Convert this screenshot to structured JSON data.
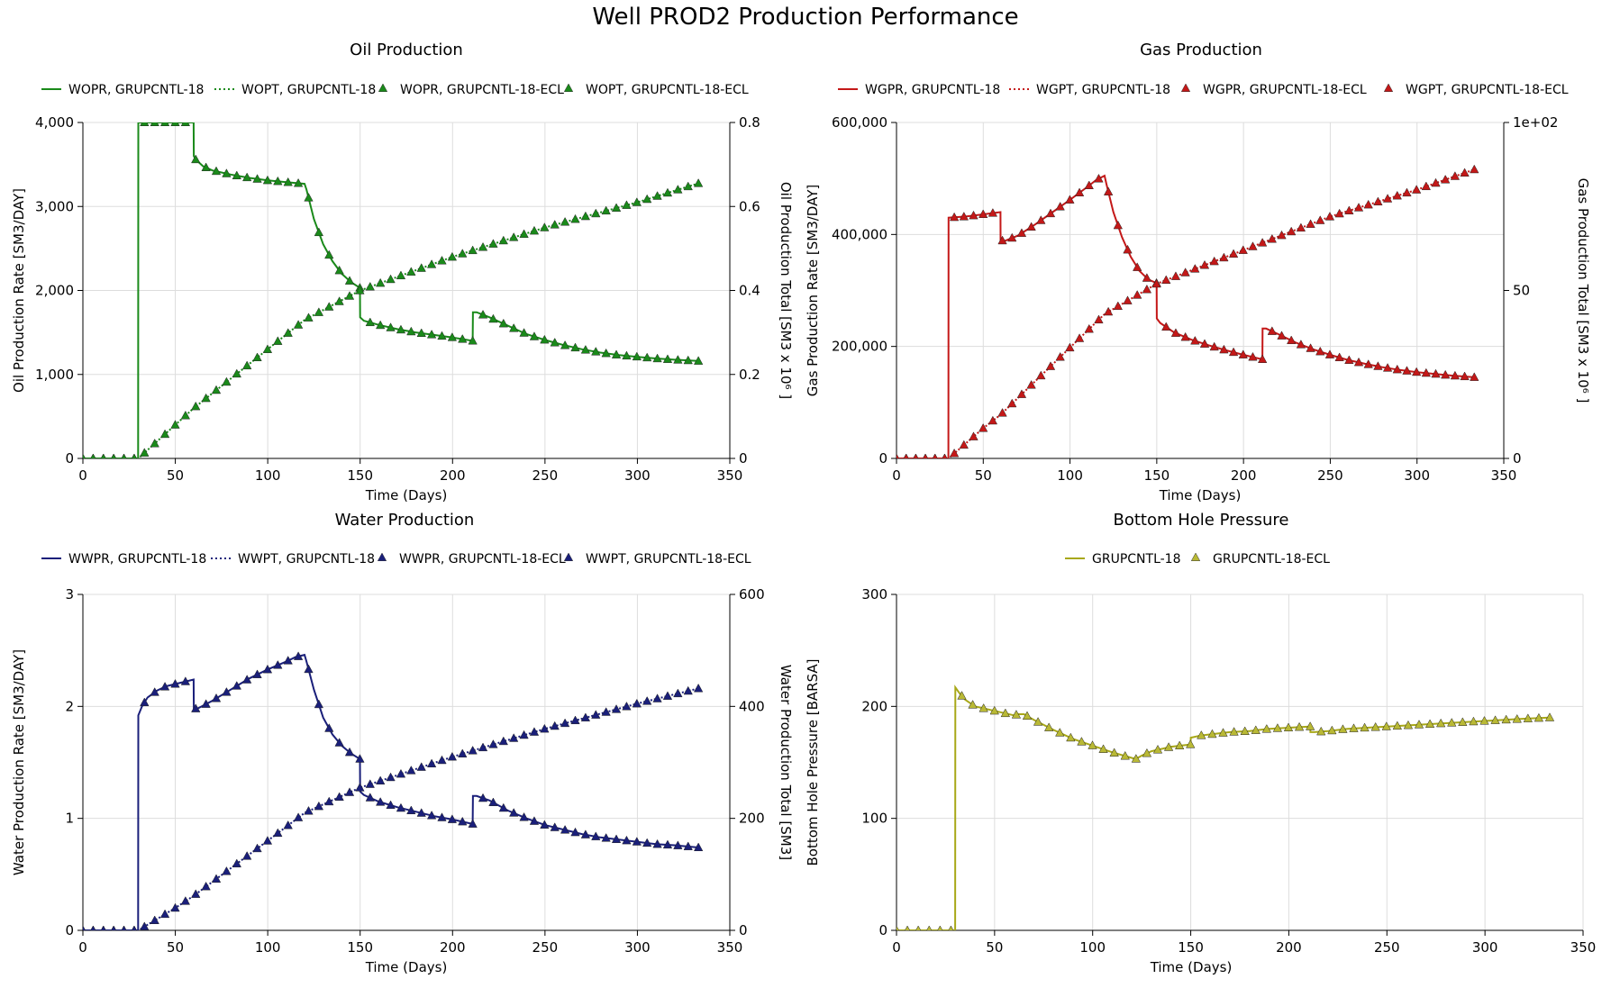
{
  "page": {
    "title": "Well PROD2 Production Performance"
  },
  "colors": {
    "oil": "#1a8a1a",
    "gas": "#c41818",
    "water": "#1a1f7a",
    "bhp": "#a8a818",
    "bhp_marker": "#b9b935",
    "grid": "#dddddd",
    "axis": "#000000"
  },
  "chart_data": [
    {
      "id": "oil",
      "type": "line",
      "title": "Oil Production",
      "xlabel": "Time (Days)",
      "ylabel": "Oil Production Rate [SM3/DAY]",
      "y2label": "Oil Production Total [SM3 x 10⁶ ]",
      "xlim": [
        0,
        350
      ],
      "xticks": [
        0,
        50,
        100,
        150,
        200,
        250,
        300,
        350
      ],
      "xtick_labels": [
        "0",
        "50",
        "100",
        "150",
        "200",
        "250",
        "300",
        "350"
      ],
      "ylim": [
        0,
        4000
      ],
      "yticks": [
        0,
        1000,
        2000,
        3000,
        4000
      ],
      "ytick_labels": [
        "0",
        "1,000",
        "2,000",
        "3,000",
        "4,000"
      ],
      "y2lim": [
        0,
        0.8
      ],
      "y2ticks": [
        0,
        0.2,
        0.4,
        0.6,
        0.8
      ],
      "y2tick_labels": [
        "0",
        "0.2",
        "0.4",
        "0.6",
        "0.8"
      ],
      "grid": true,
      "legend": [
        {
          "label": "WOPR, GRUPCNTL-18",
          "kind": "line"
        },
        {
          "label": "WOPT, GRUPCNTL-18",
          "kind": "dotted"
        },
        {
          "label": "WOPR, GRUPCNTL-18-ECL",
          "kind": "marker"
        },
        {
          "label": "WOPT, GRUPCNTL-18-ECL",
          "kind": "marker"
        }
      ],
      "series": [
        {
          "axis": "y1",
          "x": [
            0,
            29.9,
            30,
            59.9,
            60,
            61,
            65,
            70,
            80,
            90,
            100,
            110,
            119.9,
            121,
            125,
            130,
            135,
            140,
            145,
            149.9,
            150,
            152,
            160,
            170,
            180,
            190,
            200,
            210.9,
            211,
            213,
            220,
            230,
            240,
            250,
            260,
            270,
            280,
            290,
            300,
            310,
            320,
            333
          ],
          "y": [
            0,
            0,
            4000,
            4000,
            3600,
            3560,
            3480,
            3430,
            3380,
            3340,
            3310,
            3290,
            3270,
            3200,
            2850,
            2550,
            2350,
            2200,
            2100,
            2030,
            1680,
            1640,
            1590,
            1540,
            1500,
            1470,
            1440,
            1400,
            1740,
            1740,
            1680,
            1580,
            1480,
            1410,
            1350,
            1300,
            1260,
            1230,
            1210,
            1190,
            1175,
            1160
          ]
        },
        {
          "axis": "y2",
          "x": [
            0,
            30,
            50,
            60,
            100,
            120,
            150,
            200,
            250,
            300,
            333
          ],
          "y": [
            0,
            0,
            0.08,
            0.12,
            0.26,
            0.33,
            0.4,
            0.48,
            0.55,
            0.61,
            0.655
          ]
        }
      ]
    },
    {
      "id": "gas",
      "type": "line",
      "title": "Gas Production",
      "xlabel": "Time (Days)",
      "ylabel": "Gas Production Rate [SM3/DAY]",
      "y2label": "Gas Production Total [SM3 x 10⁶ ]",
      "xlim": [
        0,
        350
      ],
      "xticks": [
        0,
        50,
        100,
        150,
        200,
        250,
        300,
        350
      ],
      "xtick_labels": [
        "0",
        "50",
        "100",
        "150",
        "200",
        "250",
        "300",
        "350"
      ],
      "ylim": [
        0,
        600000
      ],
      "yticks": [
        0,
        200000,
        400000,
        600000
      ],
      "ytick_labels": [
        "0",
        "200,000",
        "400,000",
        "600,000"
      ],
      "y2lim": [
        0,
        100
      ],
      "y2ticks": [
        0,
        50,
        100
      ],
      "y2tick_labels": [
        "0",
        "50",
        "1e+02"
      ],
      "grid": true,
      "legend": [
        {
          "label": "WGPR, GRUPCNTL-18",
          "kind": "line"
        },
        {
          "label": "WGPT, GRUPCNTL-18",
          "kind": "dotted"
        },
        {
          "label": "WGPR, GRUPCNTL-18-ECL",
          "kind": "marker"
        },
        {
          "label": "WGPT, GRUPCNTL-18-ECL",
          "kind": "marker"
        }
      ],
      "series": [
        {
          "axis": "y1",
          "x": [
            0,
            29.9,
            30,
            40,
            50,
            59.9,
            60,
            62,
            70,
            80,
            90,
            100,
            110,
            115,
            119.9,
            121,
            125,
            130,
            135,
            140,
            145,
            149.9,
            150,
            152,
            160,
            170,
            180,
            190,
            200,
            210.9,
            211,
            213,
            220,
            230,
            240,
            250,
            260,
            270,
            280,
            290,
            300,
            310,
            320,
            333
          ],
          "y": [
            0,
            0,
            430000,
            432000,
            436000,
            440000,
            390000,
            388000,
            398000,
            418000,
            440000,
            462000,
            485000,
            497000,
            505000,
            490000,
            440000,
            395000,
            360000,
            335000,
            320000,
            313000,
            250000,
            242000,
            225000,
            212000,
            202000,
            193000,
            185000,
            177000,
            232000,
            232000,
            222000,
            207000,
            195000,
            185000,
            176000,
            169000,
            163000,
            158000,
            154000,
            151000,
            148000,
            145000
          ]
        },
        {
          "axis": "y2",
          "x": [
            0,
            30,
            50,
            60,
            100,
            120,
            150,
            200,
            250,
            300,
            333
          ],
          "y": [
            0,
            0,
            9,
            13,
            33,
            43,
            52,
            62,
            72,
            80,
            86
          ]
        }
      ]
    },
    {
      "id": "water",
      "type": "line",
      "title": "Water Production",
      "xlabel": "Time (Days)",
      "ylabel": "Water Production Rate [SM3/DAY]",
      "y2label": "Water Production Total [SM3]",
      "xlim": [
        0,
        350
      ],
      "xticks": [
        0,
        50,
        100,
        150,
        200,
        250,
        300,
        350
      ],
      "xtick_labels": [
        "0",
        "50",
        "100",
        "150",
        "200",
        "250",
        "300",
        "350"
      ],
      "ylim": [
        0,
        3
      ],
      "yticks": [
        0,
        1,
        2,
        3
      ],
      "ytick_labels": [
        "0",
        "1",
        "2",
        "3"
      ],
      "y2lim": [
        0,
        600
      ],
      "y2ticks": [
        0,
        200,
        400,
        600
      ],
      "y2tick_labels": [
        "0",
        "200",
        "400",
        "600"
      ],
      "grid": true,
      "legend": [
        {
          "label": "WWPR, GRUPCNTL-18",
          "kind": "line"
        },
        {
          "label": "WWPT, GRUPCNTL-18",
          "kind": "dotted"
        },
        {
          "label": "WWPR, GRUPCNTL-18-ECL",
          "kind": "marker"
        },
        {
          "label": "WWPT, GRUPCNTL-18-ECL",
          "kind": "marker"
        }
      ],
      "series": [
        {
          "axis": "y1",
          "x": [
            0,
            29.9,
            30,
            32,
            35,
            40,
            45,
            50,
            55,
            59.9,
            60,
            62,
            70,
            80,
            90,
            100,
            110,
            115,
            119.9,
            121,
            125,
            130,
            135,
            140,
            145,
            149.9,
            150,
            152,
            160,
            170,
            180,
            190,
            200,
            210.9,
            211,
            213,
            220,
            230,
            240,
            250,
            260,
            270,
            280,
            290,
            300,
            310,
            320,
            333
          ],
          "y": [
            0,
            0,
            1.92,
            2.0,
            2.08,
            2.14,
            2.18,
            2.2,
            2.22,
            2.24,
            1.98,
            1.98,
            2.05,
            2.15,
            2.25,
            2.33,
            2.4,
            2.44,
            2.46,
            2.4,
            2.15,
            1.9,
            1.75,
            1.65,
            1.58,
            1.53,
            1.24,
            1.21,
            1.15,
            1.1,
            1.06,
            1.02,
            0.99,
            0.95,
            1.2,
            1.2,
            1.16,
            1.07,
            1.0,
            0.94,
            0.9,
            0.86,
            0.83,
            0.81,
            0.79,
            0.77,
            0.76,
            0.74
          ]
        },
        {
          "axis": "y2",
          "x": [
            0,
            30,
            50,
            60,
            100,
            120,
            150,
            200,
            250,
            300,
            333
          ],
          "y": [
            0,
            0,
            40,
            62,
            160,
            210,
            255,
            310,
            360,
            405,
            432
          ]
        }
      ]
    },
    {
      "id": "bhp",
      "type": "line",
      "title": "Bottom Hole Pressure",
      "xlabel": "Time (Days)",
      "ylabel": "Bottom Hole Pressure [BARSA]",
      "xlim": [
        0,
        350
      ],
      "xticks": [
        0,
        50,
        100,
        150,
        200,
        250,
        300,
        350
      ],
      "xtick_labels": [
        "0",
        "50",
        "100",
        "150",
        "200",
        "250",
        "300",
        "350"
      ],
      "ylim": [
        0,
        300
      ],
      "yticks": [
        0,
        100,
        200,
        300
      ],
      "ytick_labels": [
        "0",
        "100",
        "200",
        "300"
      ],
      "grid": true,
      "legend": [
        {
          "label": "GRUPCNTL-18",
          "kind": "line"
        },
        {
          "label": "GRUPCNTL-18-ECL",
          "kind": "marker"
        }
      ],
      "series": [
        {
          "axis": "y1",
          "x": [
            0,
            29.9,
            30,
            32,
            35,
            40,
            50,
            59.9,
            60,
            62,
            65,
            70,
            80,
            90,
            100,
            110,
            119.9,
            122,
            125,
            130,
            140,
            149.9,
            150,
            155,
            160,
            170,
            180,
            190,
            200,
            210.9,
            211,
            213,
            220,
            230,
            240,
            250,
            260,
            270,
            280,
            290,
            300,
            310,
            320,
            333
          ],
          "y": [
            0,
            0,
            217,
            212,
            206,
            200,
            196,
            192,
            192,
            193,
            193,
            188,
            179,
            171,
            165,
            159,
            154,
            153,
            156,
            160,
            164,
            166,
            172,
            174,
            175,
            177,
            178,
            180,
            181,
            182,
            177,
            177,
            178,
            180,
            181,
            182,
            183,
            184,
            185,
            186,
            187,
            188,
            189,
            190
          ]
        }
      ]
    }
  ]
}
